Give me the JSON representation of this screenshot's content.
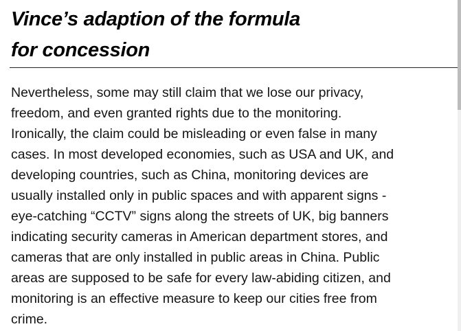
{
  "slide": {
    "title": "Vince’s adaption of the formula\nfor concession",
    "body": "Nevertheless, some may still claim that we lose our privacy,\nfreedom, and even granted rights due to the monitoring.\nIronically, the claim could be misleading or even false in many\ncases. In most developed economies, such as USA and UK, and\ndeveloping countries, such as China, monitoring devices are\nusually installed only in public spaces and with apparent signs -\neye-catching “CCTV” signs along the streets of UK, big banners\nindicating security cameras in American department stores, and\ncameras that are only installed in public areas in China. Public\nareas are supposed to be safe for every law-abiding citizen, and\nmonitoring is an effective measure to keep our cities free from\ncrime."
  },
  "colors": {
    "text": "#141414",
    "title": "#000000",
    "rule": "#222222",
    "background": "#ffffff"
  }
}
